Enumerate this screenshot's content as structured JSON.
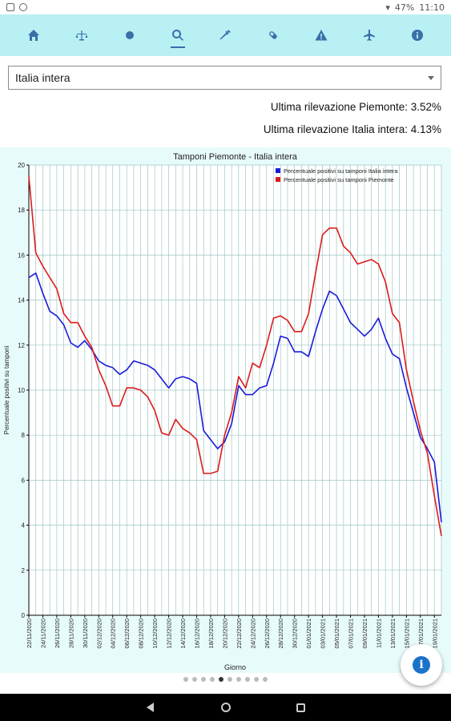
{
  "status_bar": {
    "battery": "47%",
    "time": "11:10"
  },
  "nav": {
    "items": [
      {
        "name": "home-icon"
      },
      {
        "name": "balance-icon"
      },
      {
        "name": "dot-icon"
      },
      {
        "name": "search-icon",
        "active": true
      },
      {
        "name": "syringe-icon"
      },
      {
        "name": "pill-icon"
      },
      {
        "name": "warning-icon"
      },
      {
        "name": "plane-icon"
      },
      {
        "name": "info-icon"
      }
    ]
  },
  "region_select": {
    "value": "Italia intera"
  },
  "info": {
    "piemonte": "Ultima rilevazione Piemonte: 3.52%",
    "italia": "Ultima rilevazione Italia intera: 4.13%"
  },
  "chart_data": {
    "type": "line",
    "title": "Tamponi Piemonte - Italia intera",
    "xlabel": "Giorno",
    "ylabel": "Percentuale positivi su tamponi",
    "ylim": [
      0,
      20
    ],
    "yticks": [
      0,
      2,
      4,
      6,
      8,
      10,
      12,
      14,
      16,
      18,
      20
    ],
    "x_tick_labels": [
      "22/11/2020",
      "24/11/2020",
      "26/11/2020",
      "28/11/2020",
      "30/11/2020",
      "02/12/2020",
      "04/12/2020",
      "06/12/2020",
      "08/12/2020",
      "10/12/2020",
      "12/12/2020",
      "14/12/2020",
      "16/12/2020",
      "18/12/2020",
      "20/12/2020",
      "22/12/2020",
      "24/12/2020",
      "26/12/2020",
      "28/12/2020",
      "30/12/2020",
      "01/01/2021",
      "03/01/2021",
      "05/01/2021",
      "07/01/2021",
      "09/01/2021",
      "11/01/2021",
      "13/01/2021",
      "15/01/2021",
      "17/01/2021",
      "19/01/2021"
    ],
    "grid": true,
    "legend_position": "top-right",
    "series": [
      {
        "name": "Percentuale positivi su tamponi Italia intera",
        "color": "#1a1adb",
        "values": [
          15.0,
          15.2,
          14.3,
          13.5,
          13.3,
          12.9,
          12.1,
          11.9,
          12.2,
          11.8,
          11.3,
          11.1,
          11.0,
          10.7,
          10.9,
          11.3,
          11.2,
          11.1,
          10.9,
          10.5,
          10.1,
          10.5,
          10.6,
          10.5,
          10.3,
          8.2,
          7.8,
          7.4,
          7.7,
          8.5,
          10.2,
          9.8,
          9.8,
          10.1,
          10.2,
          11.2,
          12.4,
          12.3,
          11.7,
          11.7,
          11.5,
          12.6,
          13.6,
          14.4,
          14.2,
          13.6,
          13.0,
          12.7,
          12.4,
          12.7,
          13.2,
          12.3,
          11.6,
          11.4,
          10.1,
          9.0,
          7.9,
          7.4,
          6.8,
          4.13
        ]
      },
      {
        "name": "Percentuale positivi su tamponi Piemonte",
        "color": "#dd1a1a",
        "values": [
          19.5,
          16.1,
          15.5,
          15.0,
          14.5,
          13.4,
          13.0,
          13.0,
          12.4,
          11.9,
          10.9,
          10.2,
          9.3,
          9.3,
          10.1,
          10.1,
          10.0,
          9.7,
          9.1,
          8.1,
          8.0,
          8.7,
          8.3,
          8.1,
          7.8,
          6.3,
          6.3,
          6.4,
          8.0,
          9.0,
          10.6,
          10.1,
          11.2,
          11.0,
          12.0,
          13.2,
          13.3,
          13.1,
          12.6,
          12.6,
          13.4,
          15.2,
          16.9,
          17.2,
          17.2,
          16.4,
          16.1,
          15.6,
          15.7,
          15.8,
          15.6,
          14.8,
          13.4,
          13.0,
          10.9,
          9.5,
          8.2,
          7.2,
          5.3,
          3.52
        ]
      }
    ]
  },
  "pager": {
    "count": 10,
    "active": 4
  }
}
